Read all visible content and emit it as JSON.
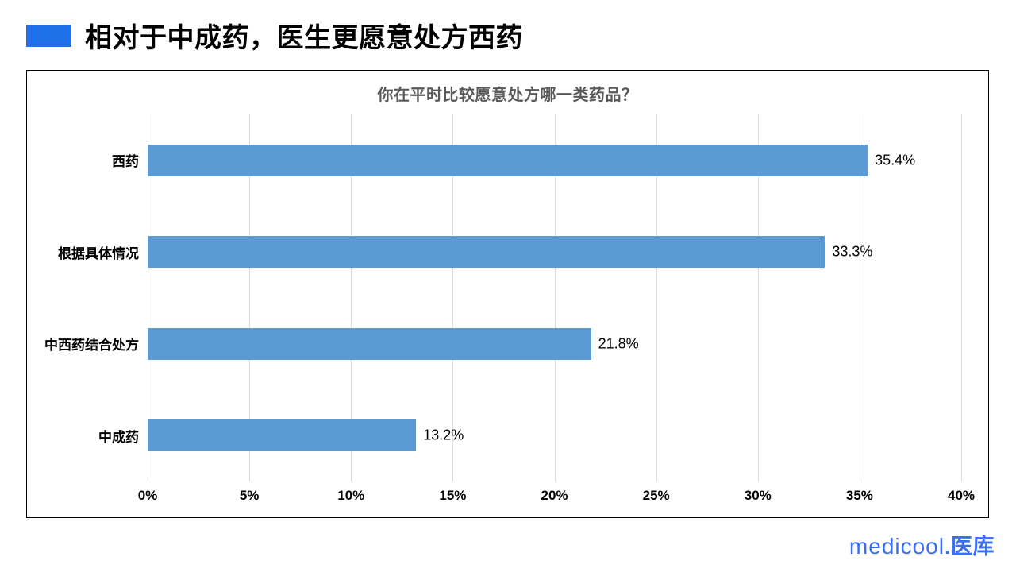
{
  "accent_color": "#1E6FE8",
  "header": {
    "title": "相对于中成药，医生更愿意处方西药"
  },
  "chart_data": {
    "type": "bar",
    "orientation": "horizontal",
    "title": "你在平时比较愿意处方哪一类药品？",
    "title_color": "#595959",
    "categories": [
      "西药",
      "根据具体情况",
      "中西药结合处方",
      "中成药"
    ],
    "values": [
      35.4,
      33.3,
      21.8,
      13.2
    ],
    "value_labels": [
      "35.4%",
      "33.3%",
      "21.8%",
      "13.2%"
    ],
    "xlabel": "",
    "ylabel": "",
    "xlim": [
      0,
      40
    ],
    "x_ticks": [
      "0%",
      "5%",
      "10%",
      "15%",
      "20%",
      "25%",
      "30%",
      "35%",
      "40%"
    ],
    "grid": true,
    "gridline_color": "#DCDCDC",
    "bar_color": "#5B9BD5",
    "legend": "none"
  },
  "footer": {
    "logo_text_en": "medicool",
    "logo_text_cn": ".医库",
    "logo_color": "#3A6FF2"
  }
}
